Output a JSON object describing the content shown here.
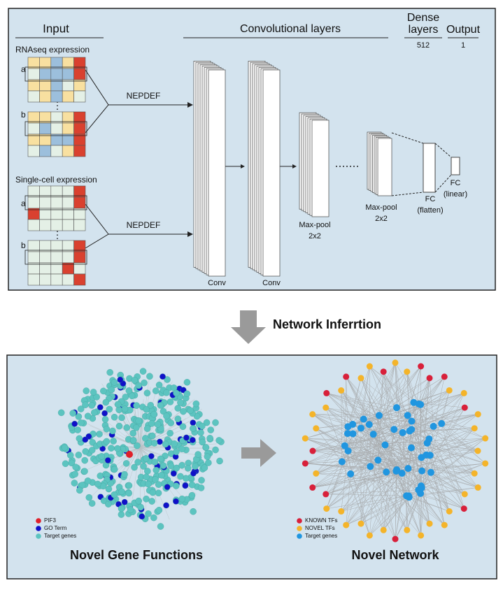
{
  "top_panel": {
    "input": {
      "title": "Input",
      "rnaseq_label": "RNAseq expression",
      "singlecell_label": "Single-cell expression",
      "row_labels": [
        "a",
        "b",
        "a",
        "b"
      ],
      "method_labels": [
        "NEPDEF",
        "NEPDEF"
      ]
    },
    "conv_title": "Convolutional layers",
    "dense": {
      "title_lines": [
        "Dense",
        "layers"
      ],
      "units": "512"
    },
    "output": {
      "title": "Output",
      "units": "1"
    },
    "layers": [
      {
        "lines": [
          "Conv"
        ]
      },
      {
        "lines": [
          "Conv"
        ]
      },
      {
        "lines": [
          "Max-pool",
          "2x2"
        ]
      },
      {
        "lines": [
          "Max-pool",
          "2x2"
        ]
      },
      {
        "lines": [
          "FC",
          "(flatten)"
        ]
      },
      {
        "lines": [
          "FC",
          "(linear)"
        ]
      }
    ]
  },
  "arrow_label": "Network Inferrtion",
  "bottom_panel": {
    "left": {
      "title": "Novel Gene Functions",
      "legend": [
        {
          "name": "PIF3",
          "color": "#e0202a"
        },
        {
          "name": "GO Term",
          "color": "#1010c8"
        },
        {
          "name": "Target genes",
          "color": "#5cc4c0"
        }
      ]
    },
    "right": {
      "title": "Novel Network",
      "legend": [
        {
          "name": "KNOWN TFs",
          "color": "#d8203a"
        },
        {
          "name": "NOVEL TFs",
          "color": "#f4b42a"
        },
        {
          "name": "Target genes",
          "color": "#2096e0"
        }
      ]
    }
  }
}
